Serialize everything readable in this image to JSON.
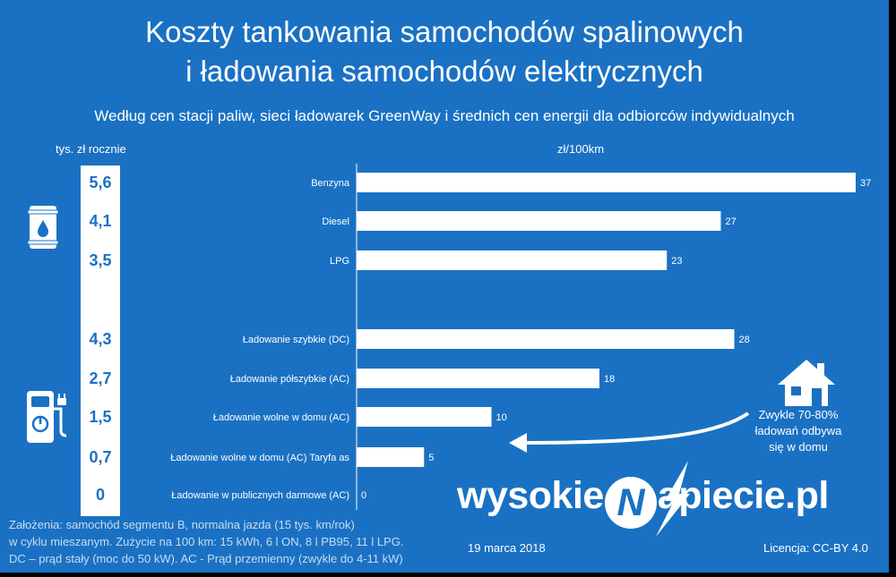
{
  "title_line1": "Koszty tankowania samochodów spalinowych",
  "title_line2": "i ładowania samochodów elektrycznych",
  "subtitle": "Według cen stacji paliw, sieci ładowarek GreenWay i średnich cen energii dla odbiorców indywidualnych",
  "left_column_label": "tys. zł rocznie",
  "bar_axis_label": "zł/100km",
  "chart_data": {
    "type": "bar",
    "orientation": "horizontal",
    "categories": [
      "Benzyna",
      "Diesel",
      "LPG",
      "Ładowanie szybkie (DC)",
      "Ładowanie półszybkie (AC)",
      "Ładowanie wolne w domu (AC)",
      "Ładowanie wolne w domu (AC) Taryfa as",
      "Ładowanie w publicznych darmowe (AC)"
    ],
    "values": [
      37,
      27,
      23,
      28,
      18,
      10,
      5,
      0
    ],
    "annual_costs": [
      "5,6",
      "4,1",
      "3,5",
      "4,3",
      "2,7",
      "1,5",
      "0,7",
      "0"
    ],
    "groups": [
      {
        "icon": "fuel-barrel-icon",
        "members": [
          0,
          1,
          2
        ]
      },
      {
        "icon": "ev-charger-icon",
        "members": [
          3,
          4,
          5,
          6,
          7
        ]
      }
    ],
    "xlim": [
      0,
      37
    ],
    "bar_color": "#ffffff",
    "background_color": "#1a71c3"
  },
  "note": [
    "Zwykle 70-80%",
    "ładowań odbywa",
    "się w domu"
  ],
  "logo": {
    "part1": "wysokie",
    "n_letter": "N",
    "part2": "apiecie.pl"
  },
  "assumptions": [
    "Założenia: samochód segmentu B, normalna jazda (15 tys. km/rok)",
    "w cyklu mieszanym. Zużycie na 100 km:  15 kWh, 6 l ON, 8 l PB95, 11 l LPG.",
    "DC – prąd stały (moc do 50 kW). AC - Prąd przemienny (zwykle do 4-11 kW)"
  ],
  "date": "19 marca 2018",
  "license": "Licencja: CC-BY 4.0"
}
